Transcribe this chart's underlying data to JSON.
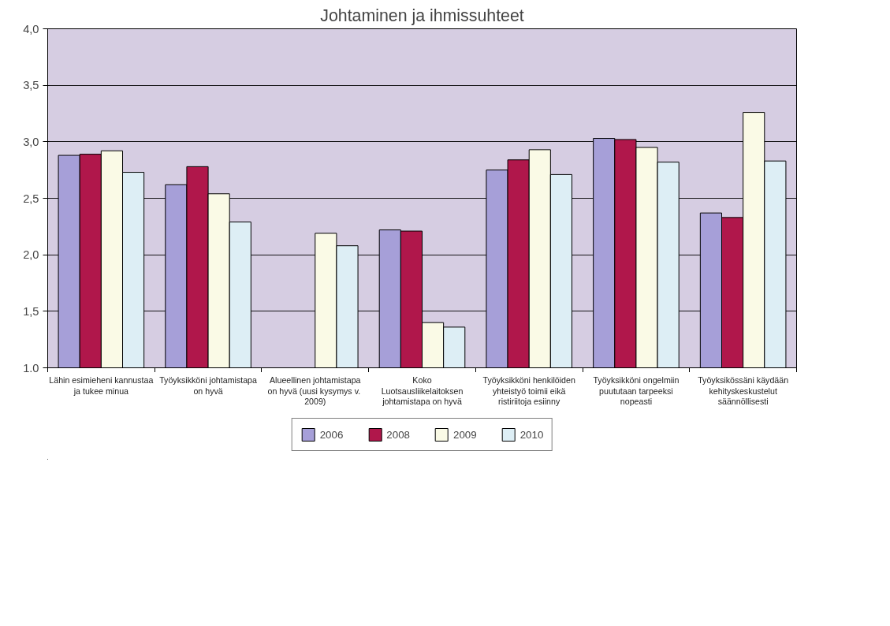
{
  "chart_data": {
    "type": "bar",
    "title": "Johtaminen ja ihmissuhteet",
    "categories": [
      "Lähin esimieheni kannustaa ja tukee minua",
      "Työyksikköni johtamistapa on hyvä",
      "Alueellinen johtamistapa on hyvä  (uusi kysymys v. 2009)",
      "Koko Luotsausliikelaitoksen johtamistapa on hyvä",
      "Työyksikköni henkilöiden yhteistyö toimii eikä ristiriitoja esiinny",
      "Työyksikköni ongelmiin puututaan tarpeeksi nopeasti",
      "Työyksikössäni käydään kehityskeskustelut säännöllisesti"
    ],
    "series": [
      {
        "name": "2006",
        "color": "#a69fd8",
        "values": [
          2.88,
          2.62,
          null,
          2.22,
          2.75,
          3.03,
          2.37
        ]
      },
      {
        "name": "2008",
        "color": "#b0174b",
        "values": [
          2.89,
          2.78,
          null,
          2.21,
          2.84,
          3.02,
          2.33
        ]
      },
      {
        "name": "2009",
        "color": "#fafae6",
        "values": [
          2.92,
          2.54,
          2.19,
          1.4,
          2.93,
          2.95,
          3.26
        ]
      },
      {
        "name": "2010",
        "color": "#ddeef5",
        "values": [
          2.73,
          2.29,
          2.08,
          1.36,
          2.71,
          2.82,
          2.83
        ]
      }
    ],
    "ylim": [
      1.0,
      4.0
    ],
    "yticks": [
      {
        "value": 1.0,
        "label": "1,0"
      },
      {
        "value": 1.5,
        "label": "1,5"
      },
      {
        "value": 2.0,
        "label": "2,0"
      },
      {
        "value": 2.5,
        "label": "2,5"
      },
      {
        "value": 3.0,
        "label": "3,0"
      },
      {
        "value": 3.5,
        "label": "3,5"
      },
      {
        "value": 4.0,
        "label": "4,0"
      }
    ],
    "grid": "y",
    "legend": "bottom"
  }
}
